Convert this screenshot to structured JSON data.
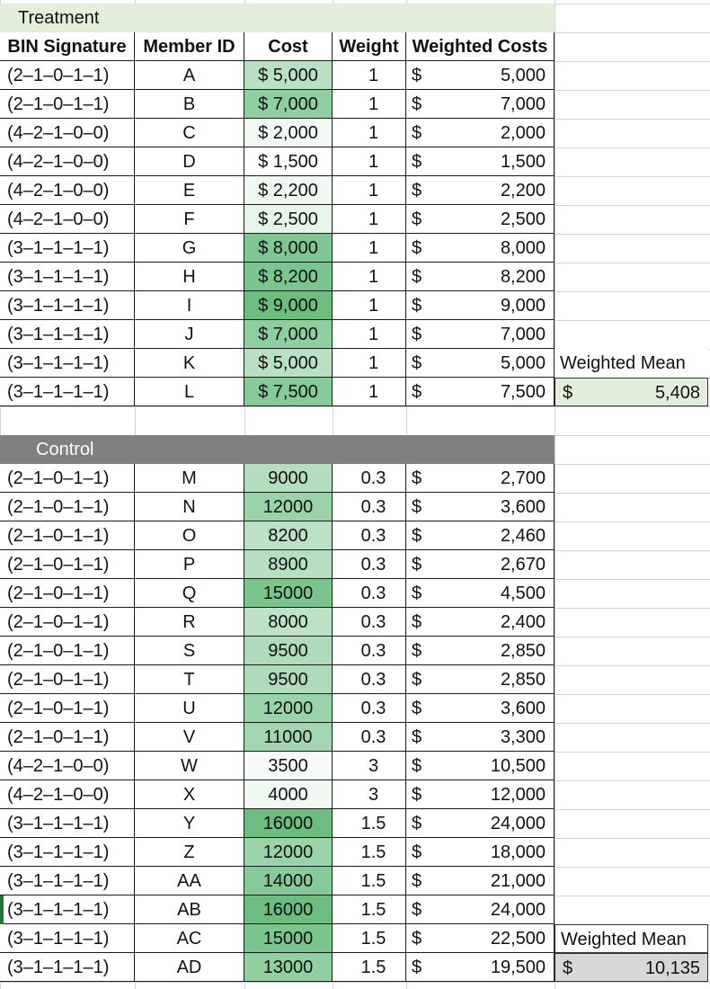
{
  "treatment": {
    "title": "Treatment",
    "title_bg": "#e4efdb",
    "headers": [
      "BIN Signature",
      "Member ID",
      "Cost",
      "Weight",
      "Weighted Costs"
    ],
    "rows": [
      {
        "sig": "(2–1–0–1–1)",
        "id": "A",
        "cost": "$ 5,000",
        "weight": "1",
        "dollar": "$",
        "wc": "5,000",
        "fill": "#b9e0c3"
      },
      {
        "sig": "(2–1–0–1–1)",
        "id": "B",
        "cost": "$ 7,000",
        "weight": "1",
        "dollar": "$",
        "wc": "7,000",
        "fill": "#8fce9f"
      },
      {
        "sig": "(4–2–1–0–0)",
        "id": "C",
        "cost": "$ 2,000",
        "weight": "1",
        "dollar": "$",
        "wc": "2,000",
        "fill": "#f1f9f2"
      },
      {
        "sig": "(4–2–1–0–0)",
        "id": "D",
        "cost": "$ 1,500",
        "weight": "1",
        "dollar": "$",
        "wc": "1,500",
        "fill": "#ffffff"
      },
      {
        "sig": "(4–2–1–0–0)",
        "id": "E",
        "cost": "$ 2,200",
        "weight": "1",
        "dollar": "$",
        "wc": "2,200",
        "fill": "#eef8f0"
      },
      {
        "sig": "(4–2–1–0–0)",
        "id": "F",
        "cost": "$ 2,500",
        "weight": "1",
        "dollar": "$",
        "wc": "2,500",
        "fill": "#e6f4e9"
      },
      {
        "sig": "(3–1–1–1–1)",
        "id": "G",
        "cost": "$ 8,000",
        "weight": "1",
        "dollar": "$",
        "wc": "8,000",
        "fill": "#7fc792"
      },
      {
        "sig": "(3–1–1–1–1)",
        "id": "H",
        "cost": "$ 8,200",
        "weight": "1",
        "dollar": "$",
        "wc": "8,200",
        "fill": "#7bc58e"
      },
      {
        "sig": "(3–1–1–1–1)",
        "id": "I",
        "cost": "$ 9,000",
        "weight": "1",
        "dollar": "$",
        "wc": "9,000",
        "fill": "#6bbd80"
      },
      {
        "sig": "(3–1–1–1–1)",
        "id": "J",
        "cost": "$ 7,000",
        "weight": "1",
        "dollar": "$",
        "wc": "7,000",
        "fill": "#8fce9f"
      },
      {
        "sig": "(3–1–1–1–1)",
        "id": "K",
        "cost": "$ 5,000",
        "weight": "1",
        "dollar": "$",
        "wc": "5,000",
        "fill": "#b9e0c3"
      },
      {
        "sig": "(3–1–1–1–1)",
        "id": "L",
        "cost": "$ 7,500",
        "weight": "1",
        "dollar": "$",
        "wc": "7,500",
        "fill": "#86ca98"
      }
    ],
    "weighted_mean": {
      "label": "Weighted Mean",
      "dollar": "$",
      "value": "5,408"
    }
  },
  "control": {
    "title": "Control",
    "title_bg": "#808080",
    "title_color": "#ffffff",
    "rows": [
      {
        "sig": "(2–1–0–1–1)",
        "id": "M",
        "cost": "9000",
        "weight": "0.3",
        "dollar": "$",
        "wc": "2,700",
        "fill": "#b3ddbd"
      },
      {
        "sig": "(2–1–0–1–1)",
        "id": "N",
        "cost": "12000",
        "weight": "0.3",
        "dollar": "$",
        "wc": "3,600",
        "fill": "#9bd3a9"
      },
      {
        "sig": "(2–1–0–1–1)",
        "id": "O",
        "cost": "8200",
        "weight": "0.3",
        "dollar": "$",
        "wc": "2,460",
        "fill": "#bde1c5"
      },
      {
        "sig": "(2–1–0–1–1)",
        "id": "P",
        "cost": "8900",
        "weight": "0.3",
        "dollar": "$",
        "wc": "2,670",
        "fill": "#b6dec0"
      },
      {
        "sig": "(2–1–0–1–1)",
        "id": "Q",
        "cost": "15000",
        "weight": "0.3",
        "dollar": "$",
        "wc": "4,500",
        "fill": "#7ac48d"
      },
      {
        "sig": "(2–1–0–1–1)",
        "id": "R",
        "cost": "8000",
        "weight": "0.3",
        "dollar": "$",
        "wc": "2,400",
        "fill": "#bfe2c6"
      },
      {
        "sig": "(2–1–0–1–1)",
        "id": "S",
        "cost": "9500",
        "weight": "0.3",
        "dollar": "$",
        "wc": "2,850",
        "fill": "#b0dbbb"
      },
      {
        "sig": "(2–1–0–1–1)",
        "id": "T",
        "cost": "9500",
        "weight": "0.3",
        "dollar": "$",
        "wc": "2,850",
        "fill": "#b0dbbb"
      },
      {
        "sig": "(2–1–0–1–1)",
        "id": "U",
        "cost": "12000",
        "weight": "0.3",
        "dollar": "$",
        "wc": "3,600",
        "fill": "#9bd3a9"
      },
      {
        "sig": "(2–1–0–1–1)",
        "id": "V",
        "cost": "11000",
        "weight": "0.3",
        "dollar": "$",
        "wc": "3,300",
        "fill": "#a3d6b0"
      },
      {
        "sig": "(4–2–1–0–0)",
        "id": "W",
        "cost": "3500",
        "weight": "3",
        "dollar": "$",
        "wc": "10,500",
        "fill": "#f7fbf8"
      },
      {
        "sig": "(4–2–1–0–0)",
        "id": "X",
        "cost": "4000",
        "weight": "3",
        "dollar": "$",
        "wc": "12,000",
        "fill": "#f0f8f2"
      },
      {
        "sig": "(3–1–1–1–1)",
        "id": "Y",
        "cost": "16000",
        "weight": "1.5",
        "dollar": "$",
        "wc": "24,000",
        "fill": "#6cbd81"
      },
      {
        "sig": "(3–1–1–1–1)",
        "id": "Z",
        "cost": "12000",
        "weight": "1.5",
        "dollar": "$",
        "wc": "18,000",
        "fill": "#9bd3a9"
      },
      {
        "sig": "(3–1–1–1–1)",
        "id": "AA",
        "cost": "14000",
        "weight": "1.5",
        "dollar": "$",
        "wc": "21,000",
        "fill": "#86ca98"
      },
      {
        "sig": "(3–1–1–1–1)",
        "id": "AB",
        "cost": "16000",
        "weight": "1.5",
        "dollar": "$",
        "wc": "24,000",
        "fill": "#6cbd81"
      },
      {
        "sig": "(3–1–1–1–1)",
        "id": "AC",
        "cost": "15000",
        "weight": "1.5",
        "dollar": "$",
        "wc": "22,500",
        "fill": "#7ac48d"
      },
      {
        "sig": "(3–1–1–1–1)",
        "id": "AD",
        "cost": "13000",
        "weight": "1.5",
        "dollar": "$",
        "wc": "19,500",
        "fill": "#91cfa0"
      }
    ],
    "weighted_mean": {
      "label": "Weighted Mean",
      "dollar": "$",
      "value": "10,135"
    }
  },
  "colors": {
    "gridline": "#d4d4d4",
    "border": "#1a1a1a",
    "treatment_band": "#e4efdb",
    "control_band": "#808080",
    "active_row_marker": "#1f7a3a"
  }
}
